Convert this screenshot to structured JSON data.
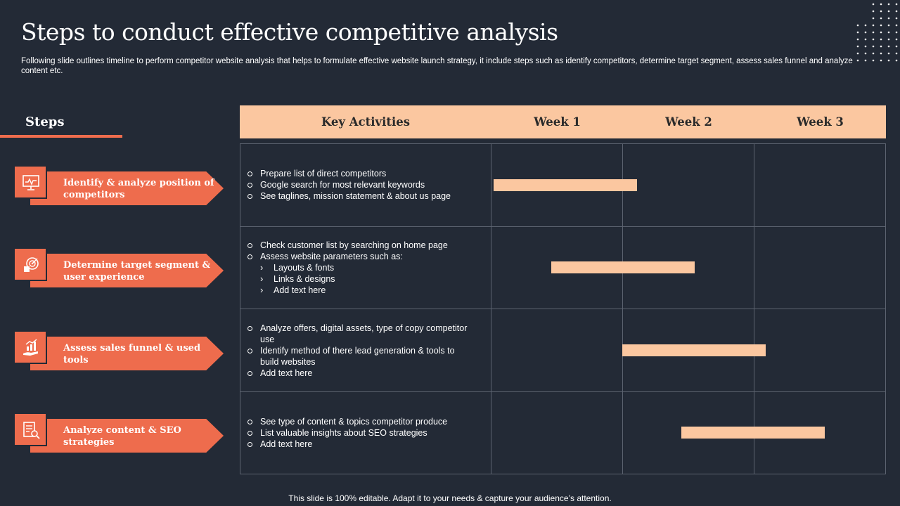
{
  "header": {
    "title": "Steps to conduct effective competitive analysis",
    "subtitle": "Following slide outlines timeline to perform competitor website analysis that helps to formulate effective website launch strategy, it include steps such as identify competitors, determine target segment, assess sales funnel and analyze content etc."
  },
  "steps_heading": "Steps",
  "steps": [
    {
      "label": "Identify & analyze position of competitors",
      "icon": "monitor-chart-icon"
    },
    {
      "label": "Determine target segment & user experience",
      "icon": "target-segment-icon"
    },
    {
      "label": "Assess sales funnel & used tools",
      "icon": "growth-hand-icon"
    },
    {
      "label": "Analyze content & SEO strategies",
      "icon": "document-search-icon"
    }
  ],
  "table": {
    "headers": [
      "Key Activities",
      "Week 1",
      "Week 2",
      "Week 3"
    ],
    "rows": [
      {
        "items": [
          {
            "text": "Prepare list of direct competitors",
            "level": 0
          },
          {
            "text": "Google search for most relevant keywords",
            "level": 0
          },
          {
            "text": "See taglines, mission statement & about us page",
            "level": 0
          }
        ],
        "bar_start_week": 1.02,
        "bar_end_week": 2.11
      },
      {
        "items": [
          {
            "text": "Check customer list by searching on home page",
            "level": 0
          },
          {
            "text": "Assess website parameters such as:",
            "level": 0
          },
          {
            "text": "Layouts & fonts",
            "level": 1
          },
          {
            "text": "Links & designs",
            "level": 1
          },
          {
            "text": "Add text here",
            "level": 1
          }
        ],
        "bar_start_week": 1.46,
        "bar_end_week": 2.55
      },
      {
        "items": [
          {
            "text": "Analyze offers, digital assets, type of copy competitor use",
            "level": 0
          },
          {
            "text": "Identify method of there lead generation & tools to build websites",
            "level": 0
          },
          {
            "text": "Add text here",
            "level": 0
          }
        ],
        "bar_start_week": 2.0,
        "bar_end_week": 3.09
      },
      {
        "items": [
          {
            "text": "See type of content & topics competitor produce",
            "level": 0
          },
          {
            "text": "List valuable insights about SEO strategies",
            "level": 0
          },
          {
            "text": "Add text here",
            "level": 0
          }
        ],
        "bar_start_week": 2.45,
        "bar_end_week": 3.54
      }
    ]
  },
  "colors": {
    "accent": "#ee6c4d",
    "header_fill": "#fbc7a0",
    "background": "#232a36"
  },
  "footer": "This slide is 100% editable. Adapt it to your needs & capture your audience’s attention."
}
